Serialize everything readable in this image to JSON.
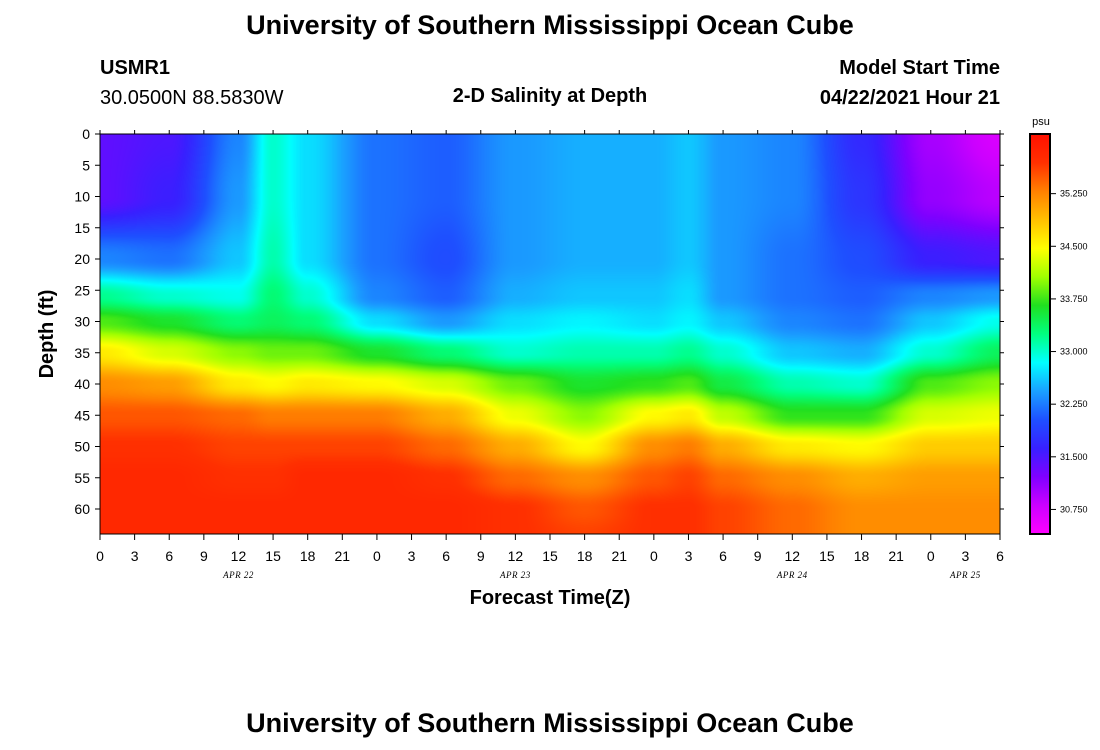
{
  "header": {
    "title": "University of Southern Mississippi Ocean Cube",
    "station_id": "USMR1",
    "station_coords": "30.0500N  88.5830W",
    "plot_title": "2-D Salinity at Depth",
    "model_start_label": "Model Start Time",
    "model_start_value": "04/22/2021 Hour 21"
  },
  "footer": {
    "title": "University of Southern Mississippi Ocean Cube"
  },
  "chart_data": {
    "type": "heatmap",
    "title": "2-D Salinity at Depth",
    "xlabel": "Forecast Time(Z)",
    "ylabel": "Depth (ft)",
    "x_range_hours": [
      0,
      78
    ],
    "x_tick_hours": [
      0,
      3,
      6,
      9,
      12,
      15,
      18,
      21,
      24,
      27,
      30,
      33,
      36,
      39,
      42,
      45,
      48,
      51,
      54,
      57,
      60,
      63,
      66,
      69,
      72,
      75,
      78
    ],
    "x_tick_labels": [
      "0",
      "3",
      "6",
      "9",
      "12",
      "15",
      "18",
      "21",
      "0",
      "3",
      "6",
      "9",
      "12",
      "15",
      "18",
      "21",
      "0",
      "3",
      "6",
      "9",
      "12",
      "15",
      "18",
      "21",
      "0",
      "3",
      "6"
    ],
    "date_labels": [
      {
        "hour": 12,
        "label": "APR 22"
      },
      {
        "hour": 36,
        "label": "APR 23"
      },
      {
        "hour": 60,
        "label": "APR 24"
      },
      {
        "hour": 75,
        "label": "APR 25"
      }
    ],
    "y_range_ft": [
      0,
      64
    ],
    "y_ticks": [
      0,
      5,
      10,
      15,
      20,
      25,
      30,
      35,
      40,
      45,
      50,
      55,
      60
    ],
    "colorbar": {
      "unit": "psu",
      "range": [
        30.4,
        36.1
      ],
      "tick_values": [
        30.75,
        31.5,
        32.25,
        33.0,
        33.75,
        34.5,
        35.25
      ],
      "tick_labels": [
        "30.750",
        "31.500",
        "32.250",
        "33.000",
        "33.750",
        "34.500",
        "35.250"
      ],
      "colors": [
        "#ff00ff",
        "#cc00ff",
        "#8000ff",
        "#3820ff",
        "#1e50ff",
        "#1aa0ff",
        "#00ffff",
        "#00ff80",
        "#20e020",
        "#a0ff00",
        "#ffff00",
        "#ffc000",
        "#ff8000",
        "#ff3000",
        "#ff1000"
      ]
    },
    "profiles": {
      "hours": [
        0,
        6,
        12,
        15,
        18,
        24,
        30,
        36,
        42,
        48,
        51,
        54,
        60,
        66,
        72,
        78
      ],
      "depths_ft": [
        0,
        10,
        20,
        26,
        30,
        35,
        40,
        45,
        50,
        55,
        60,
        64
      ],
      "salinity_psu": [
        [
          31.4,
          31.4,
          32.3,
          33.2,
          33.8,
          34.6,
          35.2,
          35.5,
          35.7,
          35.8,
          35.8,
          35.8
        ],
        [
          31.5,
          31.6,
          32.2,
          33.0,
          33.6,
          34.3,
          35.1,
          35.5,
          35.7,
          35.8,
          35.8,
          35.8
        ],
        [
          32.3,
          32.4,
          32.6,
          32.9,
          33.3,
          34.0,
          34.6,
          35.4,
          35.6,
          35.7,
          35.8,
          35.8
        ],
        [
          33.0,
          33.0,
          33.1,
          33.3,
          33.4,
          33.9,
          34.5,
          35.3,
          35.6,
          35.7,
          35.8,
          35.8
        ],
        [
          32.7,
          32.7,
          32.7,
          33.0,
          33.3,
          33.9,
          34.6,
          35.3,
          35.6,
          35.8,
          35.8,
          35.8
        ],
        [
          32.2,
          32.2,
          32.2,
          32.3,
          32.7,
          33.6,
          34.5,
          35.3,
          35.6,
          35.8,
          35.8,
          35.8
        ],
        [
          32.1,
          32.1,
          32.0,
          32.1,
          32.4,
          33.3,
          34.3,
          35.0,
          35.4,
          35.7,
          35.8,
          35.8
        ],
        [
          32.4,
          32.4,
          32.4,
          32.5,
          32.7,
          33.0,
          33.9,
          34.4,
          35.0,
          35.4,
          35.7,
          35.7
        ],
        [
          32.5,
          32.5,
          32.5,
          32.6,
          32.8,
          33.1,
          33.6,
          34.0,
          34.5,
          35.2,
          35.5,
          35.6
        ],
        [
          32.5,
          32.5,
          32.5,
          32.6,
          32.7,
          33.1,
          33.7,
          34.5,
          35.2,
          35.5,
          35.7,
          35.7
        ],
        [
          32.6,
          32.6,
          32.6,
          32.7,
          32.8,
          33.2,
          33.8,
          34.6,
          35.3,
          35.6,
          35.7,
          35.7
        ],
        [
          32.4,
          32.4,
          32.4,
          32.4,
          32.6,
          33.0,
          33.5,
          34.2,
          35.0,
          35.4,
          35.6,
          35.6
        ],
        [
          32.3,
          32.3,
          32.2,
          32.2,
          32.3,
          32.6,
          33.1,
          33.7,
          34.6,
          35.2,
          35.4,
          35.4
        ],
        [
          31.7,
          31.8,
          32.0,
          32.1,
          32.2,
          32.5,
          33.0,
          33.7,
          34.5,
          35.0,
          35.2,
          35.2
        ],
        [
          31.0,
          31.1,
          31.6,
          32.3,
          32.6,
          33.0,
          33.8,
          34.3,
          34.8,
          35.1,
          35.2,
          35.2
        ],
        [
          30.7,
          30.9,
          31.5,
          32.4,
          32.9,
          33.4,
          34.0,
          34.4,
          34.8,
          35.1,
          35.2,
          35.2
        ]
      ]
    }
  }
}
